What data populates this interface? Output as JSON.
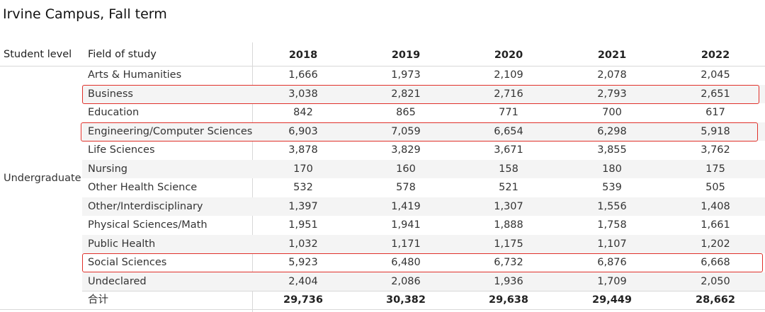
{
  "title": "Irvine Campus, Fall term",
  "table": {
    "header": [
      "Student level",
      "Field of study",
      "2018",
      "2019",
      "2020",
      "2021",
      "2022"
    ],
    "group": "Undergraduate",
    "rows": [
      {
        "field": "Arts & Humanities",
        "values": [
          "1,666",
          "1,973",
          "2,109",
          "2,078",
          "2,045"
        ]
      },
      {
        "field": "Business",
        "values": [
          "3,038",
          "2,821",
          "2,716",
          "2,793",
          "2,651"
        ]
      },
      {
        "field": "Education",
        "values": [
          "842",
          "865",
          "771",
          "700",
          "617"
        ]
      },
      {
        "field": "Engineering/Computer Sciences",
        "values": [
          "6,903",
          "7,059",
          "6,654",
          "6,298",
          "5,918"
        ]
      },
      {
        "field": "Life Sciences",
        "values": [
          "3,878",
          "3,829",
          "3,671",
          "3,855",
          "3,762"
        ]
      },
      {
        "field": "Nursing",
        "values": [
          "170",
          "160",
          "158",
          "180",
          "175"
        ]
      },
      {
        "field": "Other Health Science",
        "values": [
          "532",
          "578",
          "521",
          "539",
          "505"
        ]
      },
      {
        "field": "Other/Interdisciplinary",
        "values": [
          "1,397",
          "1,419",
          "1,307",
          "1,556",
          "1,408"
        ]
      },
      {
        "field": "Physical Sciences/Math",
        "values": [
          "1,951",
          "1,941",
          "1,888",
          "1,758",
          "1,661"
        ]
      },
      {
        "field": "Public Health",
        "values": [
          "1,032",
          "1,171",
          "1,175",
          "1,107",
          "1,202"
        ]
      },
      {
        "field": "Social Sciences",
        "values": [
          "5,923",
          "6,480",
          "6,732",
          "6,876",
          "6,668"
        ]
      },
      {
        "field": "Undeclared",
        "values": [
          "2,404",
          "2,086",
          "1,936",
          "1,709",
          "2,050"
        ]
      }
    ],
    "total": {
      "label": "合计",
      "values": [
        "29,736",
        "30,382",
        "29,638",
        "29,449",
        "28,662"
      ]
    }
  }
}
